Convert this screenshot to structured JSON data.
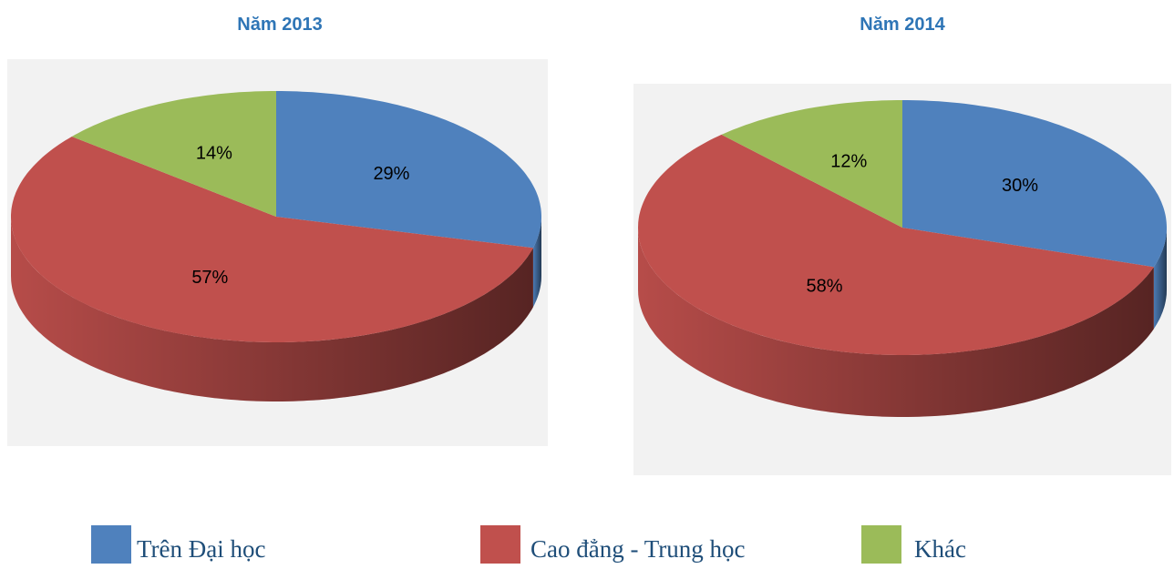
{
  "chart_data": [
    {
      "type": "pie",
      "title": "Năm 2013",
      "values": [
        29,
        57,
        14
      ],
      "value_labels": [
        "29%",
        "57%",
        "14%"
      ]
    },
    {
      "type": "pie",
      "title": "Năm 2014",
      "values": [
        30,
        58,
        12
      ],
      "value_labels": [
        "30%",
        "58%",
        "12%"
      ]
    }
  ],
  "legend": {
    "labels": [
      "Trên Đại học",
      "Cao đẳng - Trung học",
      "Khác"
    ],
    "colors": [
      "#4f81bd",
      "#c0504d",
      "#9bbb59"
    ]
  }
}
